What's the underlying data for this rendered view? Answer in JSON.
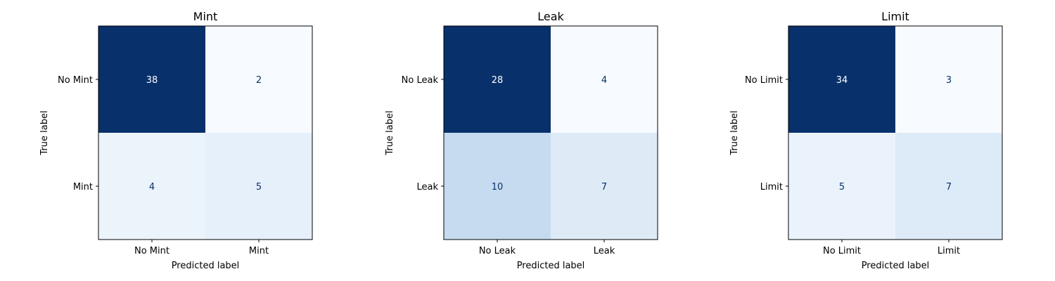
{
  "chart_data": [
    {
      "type": "heatmap",
      "title": "Mint",
      "xlabel": "Predicted label",
      "ylabel": "True label",
      "x_categories": [
        "No Mint",
        "Mint"
      ],
      "y_categories": [
        "No Mint",
        "Mint"
      ],
      "values": [
        [
          38,
          2
        ],
        [
          4,
          5
        ]
      ],
      "colormap": "Blues"
    },
    {
      "type": "heatmap",
      "title": "Leak",
      "xlabel": "Predicted label",
      "ylabel": "True label",
      "x_categories": [
        "No Leak",
        "Leak"
      ],
      "y_categories": [
        "No Leak",
        "Leak"
      ],
      "values": [
        [
          28,
          4
        ],
        [
          10,
          7
        ]
      ],
      "colormap": "Blues"
    },
    {
      "type": "heatmap",
      "title": "Limit",
      "xlabel": "Predicted label",
      "ylabel": "True label",
      "x_categories": [
        "No Limit",
        "Limit"
      ],
      "y_categories": [
        "No Limit",
        "Limit"
      ],
      "values": [
        [
          34,
          3
        ],
        [
          5,
          7
        ]
      ],
      "colormap": "Blues"
    }
  ]
}
